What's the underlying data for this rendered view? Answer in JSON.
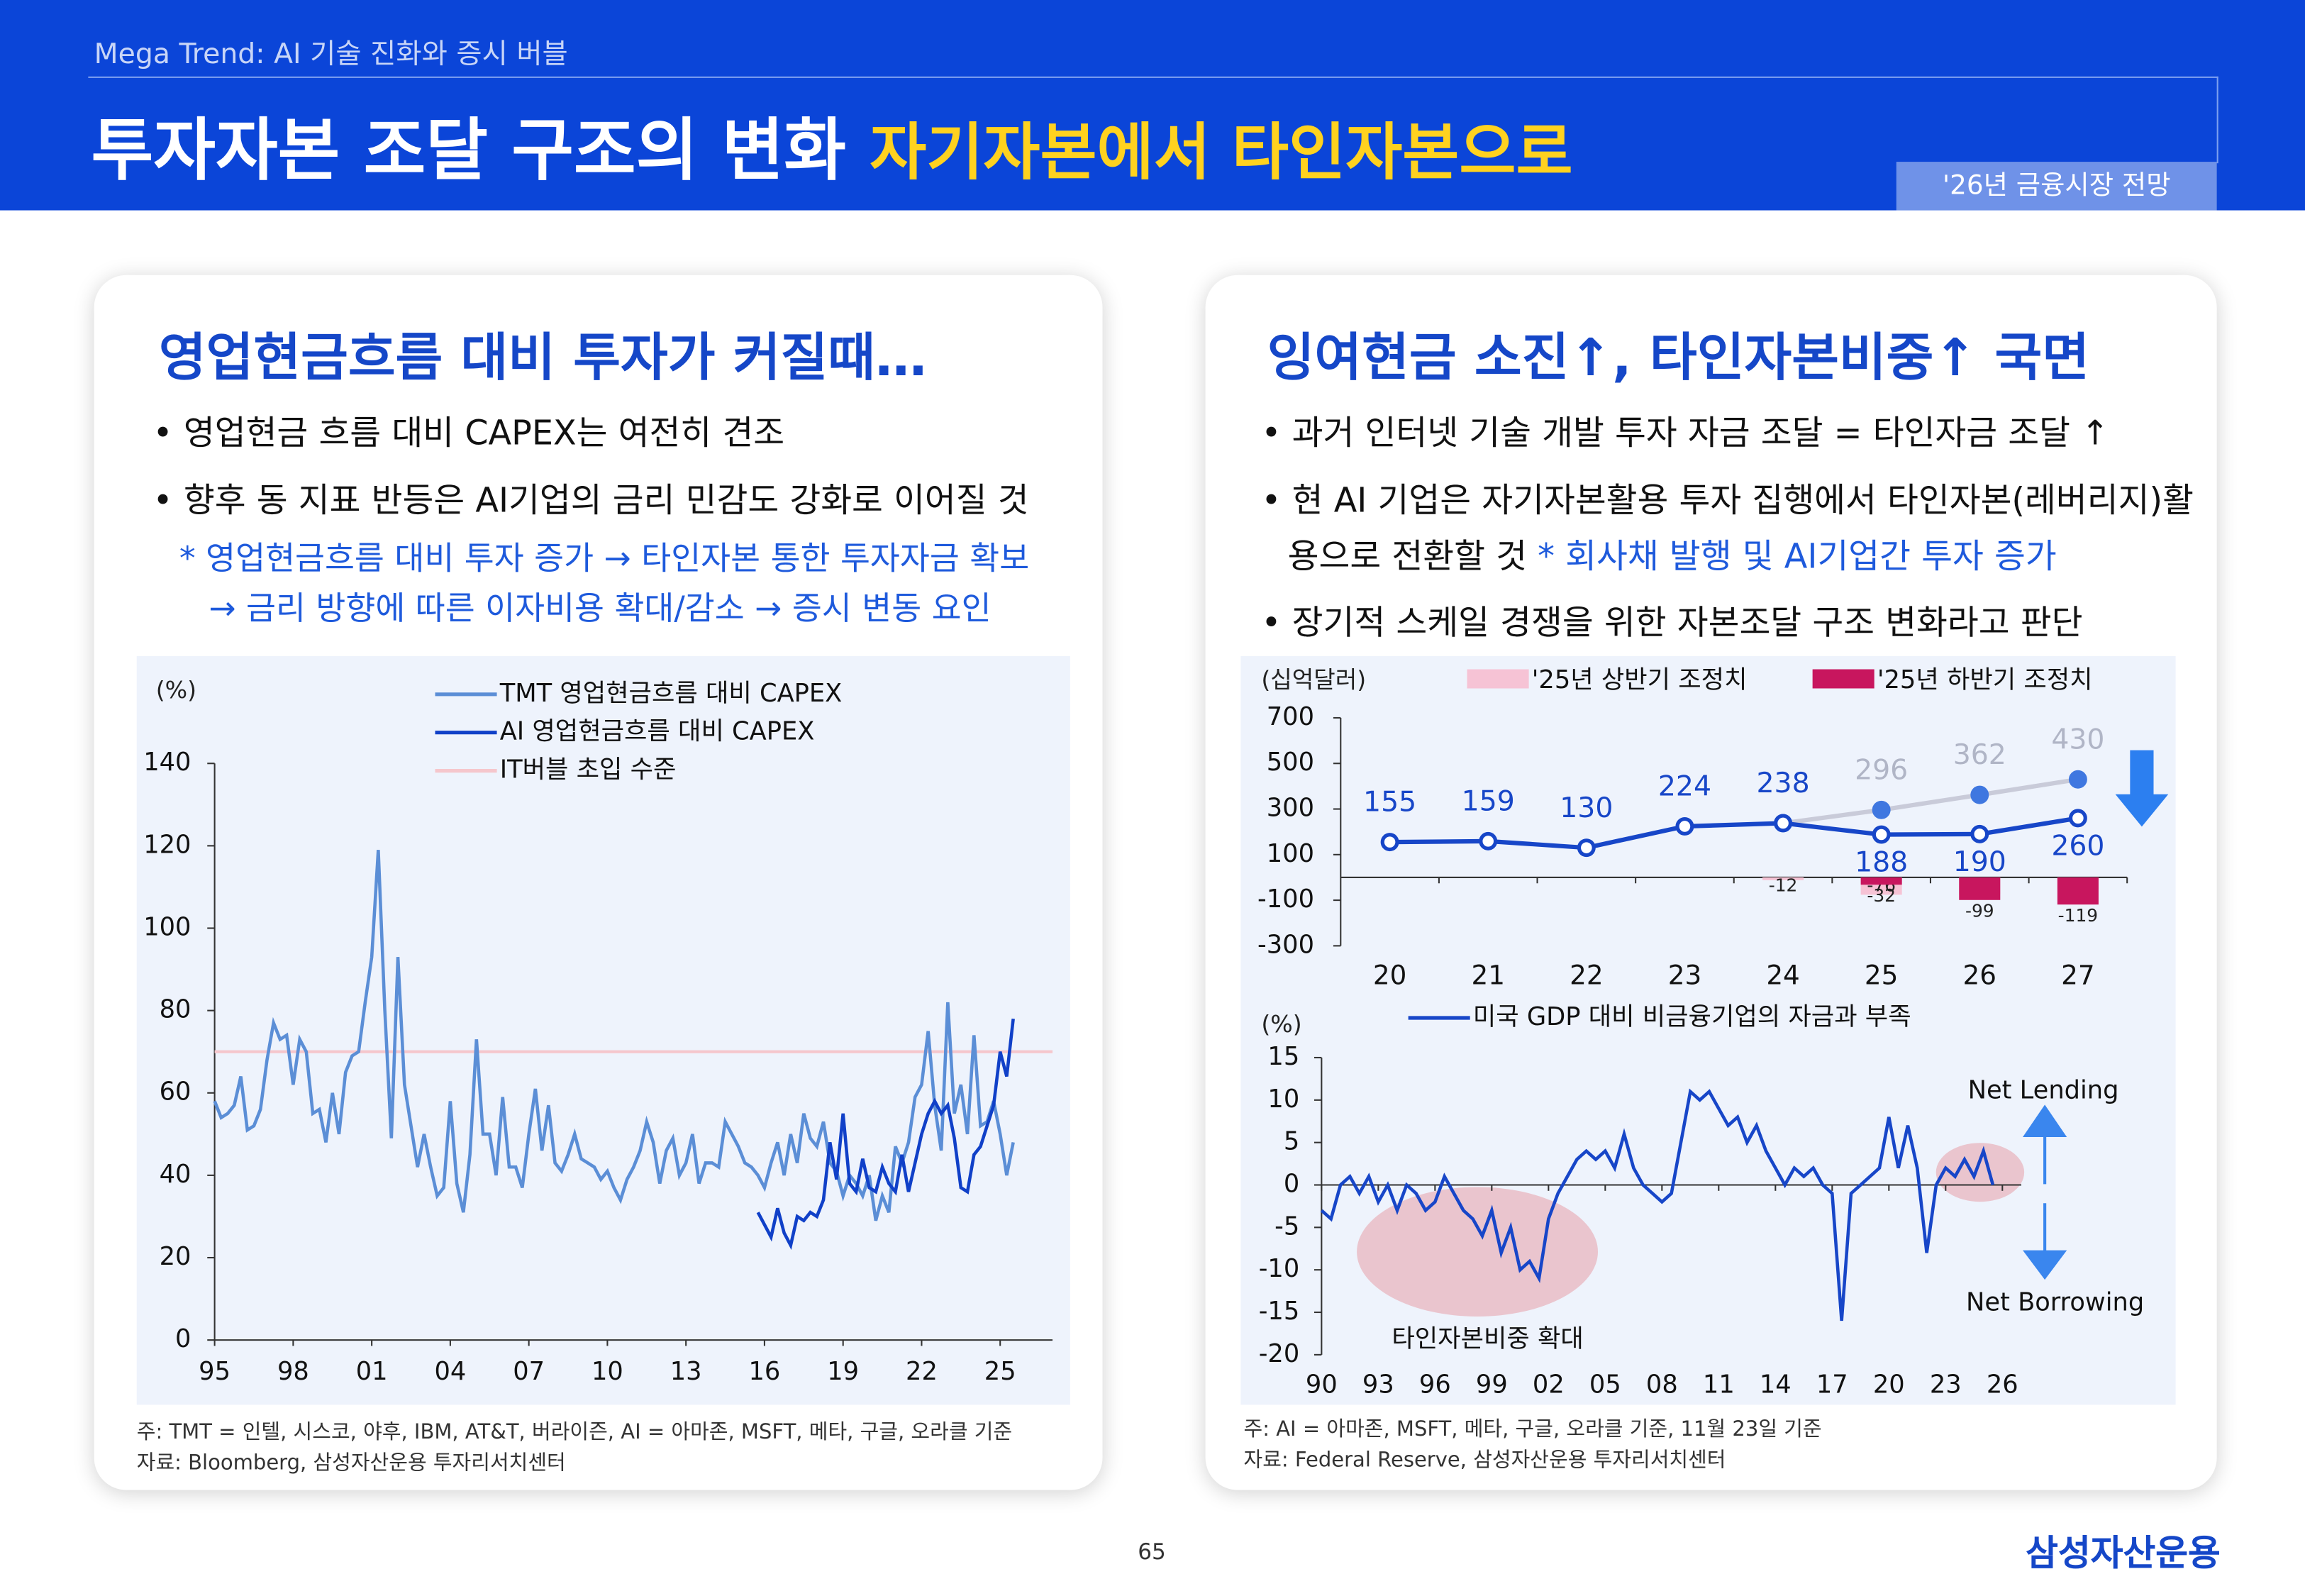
{
  "header": {
    "subtitle": "Mega Trend: AI 기술 진화와 증시 버블",
    "title": "투자자본 조달 구조의 변화",
    "title_highlight": "자기자본에서 타인자본으로",
    "tag": "'26년 금융시장 전망"
  },
  "panels": [
    {
      "heading": "영업현금흐름 대비 투자가 커질때…",
      "bullets": [
        {
          "text": "영업현금 흐름 대비 CAPEX는 여전히 견조"
        },
        {
          "text": "향후 동 지표 반등은 AI기업의 금리 민감도 강화로 이어질 것"
        }
      ],
      "notes": [
        "* 영업현금흐름 대비 투자 증가 → 타인자본 통한 투자자금 확보",
        "→ 금리 방향에 따른 이자비용 확대/감소 → 증시 변동 요인"
      ],
      "footnotes": [
        "주: TMT = 인텔, 시스코, 야후, IBM, AT&T, 버라이즌, AI = 아마존, MSFT, 메타, 구글, 오라클 기준",
        "자료: Bloomberg, 삼성자산운용 투자리서치센터"
      ]
    },
    {
      "heading": "잉여현금 소진↑, 타인자본비중↑ 국면",
      "bullets": [
        {
          "text": "과거 인터넷 기술 개발 투자 자금 조달 = 타인자금 조달 ↑"
        },
        {
          "text": "현 AI 기업은 자기자본활용 투자 집행에서 타인자본(레버리지)활용으로 전환할 것",
          "note": "* 회사채 발행 및 AI기업간 투자 증가"
        },
        {
          "text": "장기적 스케일 경쟁을 위한 자본조달 구조 변화라고 판단"
        }
      ],
      "footnotes": [
        "주: AI = 아마존, MSFT, 메타, 구글, 오라클 기준, 11월 23일 기준",
        "자료: Federal Reserve, 삼성자산운용 투자리서치센터"
      ]
    }
  ],
  "page_number": "65",
  "logo": "삼성자산운용",
  "chart_data": [
    {
      "type": "line",
      "y_label": "(%)",
      "xlim": [
        1995,
        2027
      ],
      "ylim": [
        0,
        140
      ],
      "xticks": [
        {
          "value": 1995,
          "label": "95"
        },
        {
          "value": 1998,
          "label": "98"
        },
        {
          "value": 2001,
          "label": "01"
        },
        {
          "value": 2004,
          "label": "04"
        },
        {
          "value": 2007,
          "label": "07"
        },
        {
          "value": 2010,
          "label": "10"
        },
        {
          "value": 2013,
          "label": "13"
        },
        {
          "value": 2016,
          "label": "16"
        },
        {
          "value": 2019,
          "label": "19"
        },
        {
          "value": 2022,
          "label": "22"
        },
        {
          "value": 2025,
          "label": "25"
        }
      ],
      "yticks": [
        0,
        20,
        40,
        60,
        80,
        100,
        120,
        140
      ],
      "series": [
        {
          "name": "TMT 영업현금흐름 대비 CAPEX",
          "color": "#5b8ed6",
          "x": [
            1995,
            1995.25,
            1995.5,
            1995.75,
            1996,
            1996.25,
            1996.5,
            1996.75,
            1997,
            1997.25,
            1997.5,
            1997.75,
            1998,
            1998.25,
            1998.5,
            1998.75,
            1999,
            1999.25,
            1999.5,
            1999.75,
            2000,
            2000.25,
            2000.5,
            2000.75,
            2001,
            2001.25,
            2001.5,
            2001.75,
            2002,
            2002.25,
            2002.5,
            2002.75,
            2003,
            2003.25,
            2003.5,
            2003.75,
            2004,
            2004.25,
            2004.5,
            2004.75,
            2005,
            2005.25,
            2005.5,
            2005.75,
            2006,
            2006.25,
            2006.5,
            2006.75,
            2007,
            2007.25,
            2007.5,
            2007.75,
            2008,
            2008.25,
            2008.5,
            2008.75,
            2009,
            2009.25,
            2009.5,
            2009.75,
            2010,
            2010.25,
            2010.5,
            2010.75,
            2011,
            2011.25,
            2011.5,
            2011.75,
            2012,
            2012.25,
            2012.5,
            2012.75,
            2013,
            2013.25,
            2013.5,
            2013.75,
            2014,
            2014.25,
            2014.5,
            2014.75,
            2015,
            2015.25,
            2015.5,
            2015.75,
            2016,
            2016.25,
            2016.5,
            2016.75,
            2017,
            2017.25,
            2017.5,
            2017.75,
            2018,
            2018.25,
            2018.5,
            2018.75,
            2019,
            2019.25,
            2019.5,
            2019.75,
            2020,
            2020.25,
            2020.5,
            2020.75,
            2021,
            2021.25,
            2021.5,
            2021.75,
            2022,
            2022.25,
            2022.5,
            2022.75,
            2023,
            2023.25,
            2023.5,
            2023.75,
            2024,
            2024.25,
            2024.5,
            2024.75,
            2025,
            2025.25,
            2025.5
          ],
          "values": [
            58,
            54,
            55,
            57,
            64,
            51,
            52,
            56,
            68,
            77,
            73,
            74,
            62,
            73,
            70,
            55,
            56,
            48,
            60,
            50,
            65,
            69,
            70,
            82,
            93,
            119,
            80,
            49,
            93,
            62,
            52,
            42,
            50,
            42,
            35,
            37,
            58,
            38,
            31,
            45,
            73,
            50,
            50,
            40,
            59,
            42,
            42,
            37,
            50,
            61,
            46,
            57,
            43,
            41,
            45,
            50,
            44,
            43,
            42,
            39,
            41,
            37,
            34,
            39,
            42,
            46,
            53,
            48,
            38,
            46,
            49,
            40,
            43,
            50,
            38,
            43,
            43,
            42,
            53,
            50,
            47,
            43,
            42,
            40,
            37,
            43,
            48,
            40,
            50,
            43,
            55,
            49,
            47,
            53,
            43,
            41,
            35,
            40,
            38,
            35,
            40,
            29,
            35,
            31,
            47,
            43,
            48,
            59,
            62,
            75,
            57,
            46,
            82,
            55,
            62,
            50,
            74,
            52,
            53,
            58,
            50,
            40,
            48
          ]
        },
        {
          "name": "AI 영업현금흐름 대비 CAPEX",
          "color": "#1040c8",
          "x": [
            2015.75,
            2016,
            2016.25,
            2016.5,
            2016.75,
            2017,
            2017.25,
            2017.5,
            2017.75,
            2018,
            2018.25,
            2018.5,
            2018.75,
            2019,
            2019.25,
            2019.5,
            2019.75,
            2020,
            2020.25,
            2020.5,
            2020.75,
            2021,
            2021.25,
            2021.5,
            2021.75,
            2022,
            2022.25,
            2022.5,
            2022.75,
            2023,
            2023.25,
            2023.5,
            2023.75,
            2024,
            2024.25,
            2024.5,
            2024.75,
            2025,
            2025.25,
            2025.5
          ],
          "values": [
            31,
            28,
            25,
            32,
            26,
            23,
            30,
            29,
            31,
            30,
            34,
            48,
            39,
            55,
            38,
            36,
            44,
            37,
            36,
            42,
            38,
            36,
            45,
            36,
            43,
            50,
            55,
            58,
            55,
            57,
            49,
            37,
            36,
            45,
            47,
            52,
            57,
            70,
            64,
            78
          ]
        }
      ],
      "reference_line": {
        "name": "IT버블 초입 수준",
        "value": 70,
        "color": "#f5c6cc"
      }
    },
    {
      "type": "bar_line",
      "y_label": "(십억달러)",
      "categories": [
        "20",
        "21",
        "22",
        "23",
        "24",
        "25",
        "26",
        "27"
      ],
      "ylim": [
        -300,
        700
      ],
      "yticks": [
        -300,
        -100,
        100,
        300,
        500,
        700
      ],
      "series": [
        {
          "name": "'25년 상반기 조정치",
          "kind": "bar",
          "color": "#f6c3d5",
          "values": [
            null,
            null,
            null,
            null,
            -12,
            -76,
            -74,
            -51
          ]
        },
        {
          "name": "'25년 하반기 조정치",
          "kind": "bar",
          "color": "#c8165e",
          "values": [
            null,
            null,
            null,
            null,
            null,
            -32,
            -99,
            -119
          ]
        },
        {
          "kind": "line",
          "color": "#c9cbd9",
          "marker_color": "#3f77e0",
          "label_color": "#b0b5c6",
          "values": [
            null,
            null,
            null,
            null,
            238,
            296,
            362,
            430
          ]
        },
        {
          "kind": "line",
          "color": "#1746c8",
          "marker_color": "#1746c8",
          "label_color": "#1746c8",
          "values": [
            155,
            159,
            130,
            224,
            238,
            188,
            190,
            260
          ]
        }
      ]
    },
    {
      "type": "line",
      "y_label": "(%)",
      "xlim": [
        1990,
        2027
      ],
      "ylim": [
        -20,
        15
      ],
      "xticks": [
        {
          "value": 1990,
          "label": "90"
        },
        {
          "value": 1993,
          "label": "93"
        },
        {
          "value": 1996,
          "label": "96"
        },
        {
          "value": 1999,
          "label": "99"
        },
        {
          "value": 2002,
          "label": "02"
        },
        {
          "value": 2005,
          "label": "05"
        },
        {
          "value": 2008,
          "label": "08"
        },
        {
          "value": 2011,
          "label": "11"
        },
        {
          "value": 2014,
          "label": "14"
        },
        {
          "value": 2017,
          "label": "17"
        },
        {
          "value": 2020,
          "label": "20"
        },
        {
          "value": 2023,
          "label": "23"
        },
        {
          "value": 2026,
          "label": "26"
        }
      ],
      "yticks": [
        -20,
        -15,
        -10,
        -5,
        0,
        5,
        10,
        15
      ],
      "series": [
        {
          "name": "미국 GDP 대비 비금융기업의 자금과 부족",
          "color": "#1746c8",
          "x": [
            1990,
            1990.5,
            1991,
            1991.5,
            1992,
            1992.5,
            1993,
            1993.5,
            1994,
            1994.5,
            1995,
            1995.5,
            1996,
            1996.5,
            1997,
            1997.5,
            1998,
            1998.5,
            1999,
            1999.5,
            2000,
            2000.5,
            2001,
            2001.5,
            2002,
            2002.5,
            2003,
            2003.5,
            2004,
            2004.5,
            2005,
            2005.5,
            2006,
            2006.5,
            2007,
            2007.5,
            2008,
            2008.5,
            2009,
            2009.5,
            2010,
            2010.5,
            2011,
            2011.5,
            2012,
            2012.5,
            2013,
            2013.5,
            2014,
            2014.5,
            2015,
            2015.5,
            2016,
            2016.5,
            2017,
            2017.5,
            2018,
            2018.5,
            2019,
            2019.5,
            2020,
            2020.5,
            2021,
            2021.5,
            2022,
            2022.5,
            2023,
            2023.5,
            2024,
            2024.5,
            2025,
            2025.5
          ],
          "values": [
            -3,
            -4,
            0,
            1,
            -1,
            1,
            -2,
            0,
            -3,
            0,
            -1,
            -3,
            -2,
            1,
            -1,
            -3,
            -4,
            -6,
            -3,
            -8,
            -5,
            -10,
            -9,
            -11,
            -4,
            -1,
            1,
            3,
            4,
            3,
            4,
            2,
            6,
            2,
            0,
            -1,
            -2,
            -1,
            5,
            11,
            10,
            11,
            9,
            7,
            8,
            5,
            7,
            4,
            2,
            0,
            2,
            1,
            2,
            0,
            -1,
            -16,
            -1,
            0,
            1,
            2,
            8,
            2,
            7,
            2,
            -8,
            0,
            2,
            1,
            3,
            1,
            4,
            0
          ]
        }
      ],
      "annotations": [
        "타인자본비중 확대",
        "Net Lending",
        "Net Borrowing"
      ]
    }
  ]
}
